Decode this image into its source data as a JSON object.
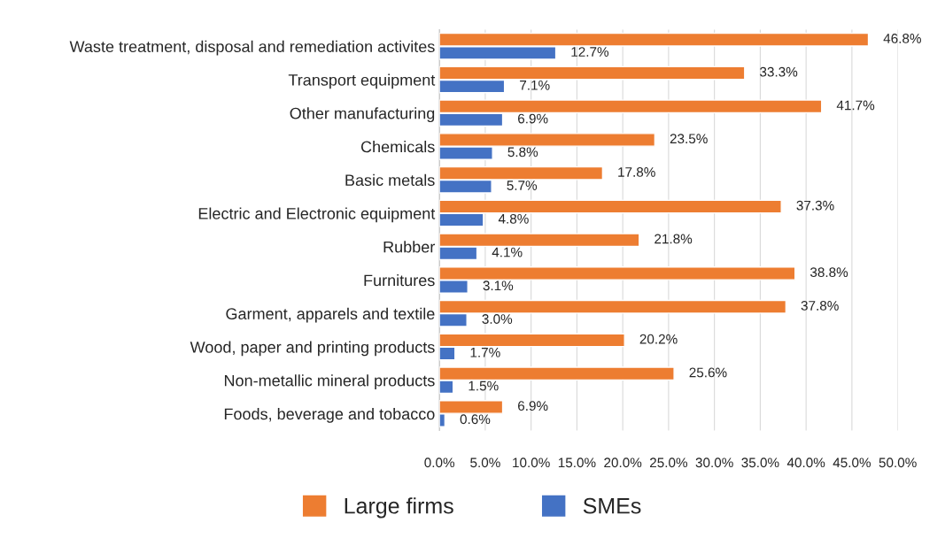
{
  "chart_data": {
    "type": "bar",
    "orientation": "horizontal",
    "categories": [
      "Waste treatment, disposal and remediation activites",
      "Transport equipment",
      "Other manufacturing",
      "Chemicals",
      "Basic metals",
      "Electric and Electronic equipment",
      "Rubber",
      "Furnitures",
      "Garment, apparels and textile",
      "Wood, paper and printing products",
      "Non-metallic mineral products",
      "Foods, beverage and tobacco"
    ],
    "series": [
      {
        "name": "Large firms",
        "color": "#ed7d31",
        "values": [
          46.8,
          33.3,
          41.7,
          23.5,
          17.8,
          37.3,
          21.8,
          38.8,
          37.8,
          20.2,
          25.6,
          6.9
        ],
        "value_labels": [
          "46.8%",
          "33.3%",
          "41.7%",
          "23.5%",
          "17.8%",
          "37.3%",
          "21.8%",
          "38.8%",
          "37.8%",
          "20.2%",
          "25.6%",
          "6.9%"
        ]
      },
      {
        "name": "SMEs",
        "color": "#4472c4",
        "values": [
          12.7,
          7.1,
          6.9,
          5.8,
          5.7,
          4.8,
          4.1,
          3.1,
          3.0,
          1.7,
          1.5,
          0.6
        ],
        "value_labels": [
          "12.7%",
          "7.1%",
          "6.9%",
          "5.8%",
          "5.7%",
          "4.8%",
          "4.1%",
          "3.1%",
          "3.0%",
          "1.7%",
          "1.5%",
          "0.6%"
        ]
      }
    ],
    "xlim": [
      0,
      50
    ],
    "xticks": [
      {
        "value": 0,
        "label": "0.0%"
      },
      {
        "value": 5,
        "label": "5.0%"
      },
      {
        "value": 10,
        "label": "10.0%"
      },
      {
        "value": 15,
        "label": "15.0%"
      },
      {
        "value": 20,
        "label": "20.0%"
      },
      {
        "value": 25,
        "label": "25.0%"
      },
      {
        "value": 30,
        "label": "30.0%"
      },
      {
        "value": 35,
        "label": "35.0%"
      },
      {
        "value": 40,
        "label": "40.0%"
      },
      {
        "value": 45,
        "label": "45.0%"
      },
      {
        "value": 50,
        "label": "50.0%"
      }
    ],
    "grid": "x",
    "legend": "bottom"
  }
}
